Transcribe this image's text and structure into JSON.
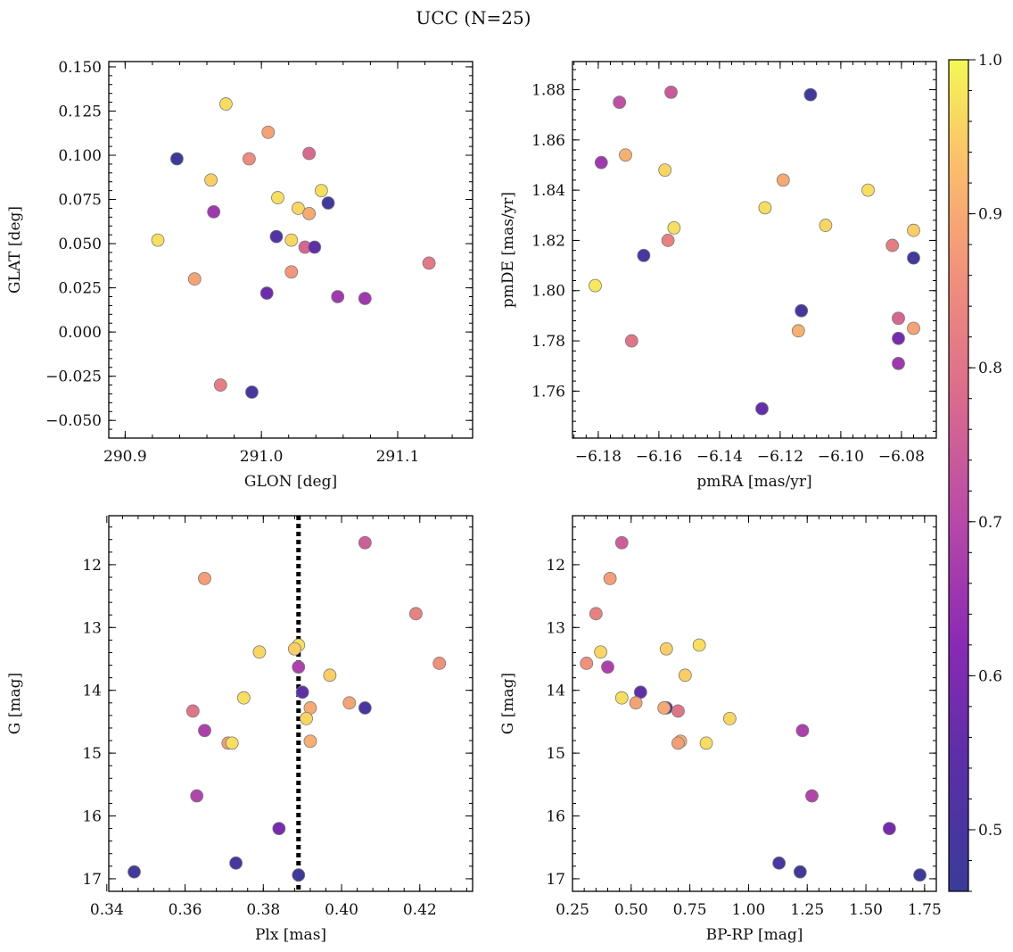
{
  "title": "UCC (N=25)",
  "colorbar": {
    "range": [
      0.46,
      1.0
    ],
    "ticks": [
      0.5,
      0.6,
      0.7,
      0.8,
      0.9,
      1.0
    ],
    "tick_labels": [
      "0.5",
      "0.6",
      "0.7",
      "0.8",
      "0.9",
      "1.0"
    ],
    "colormap": "plasma"
  },
  "chart_data": [
    {
      "id": "glon-glat",
      "type": "scatter",
      "xlabel": "GLON [deg]",
      "ylabel": "GLAT [deg]",
      "xlim": [
        290.888,
        291.155
      ],
      "ylim": [
        -0.06,
        0.153
      ],
      "x_ticks": [
        290.9,
        291.0,
        291.1
      ],
      "x_tick_labels": [
        "290.9",
        "291.0",
        "291.1"
      ],
      "y_ticks": [
        -0.05,
        -0.025,
        0.0,
        0.025,
        0.05,
        0.075,
        0.1,
        0.125,
        0.15
      ],
      "y_tick_labels": [
        "−0.050",
        "−0.025",
        "0.000",
        "0.025",
        "0.050",
        "0.075",
        "0.100",
        "0.125",
        "0.150"
      ],
      "invert_y": false,
      "points": [
        {
          "x": 290.938,
          "y": 0.098,
          "c": 0.47
        },
        {
          "x": 290.974,
          "y": 0.129,
          "c": 0.97
        },
        {
          "x": 291.005,
          "y": 0.113,
          "c": 0.89
        },
        {
          "x": 290.991,
          "y": 0.098,
          "c": 0.85
        },
        {
          "x": 291.035,
          "y": 0.101,
          "c": 0.78
        },
        {
          "x": 290.963,
          "y": 0.086,
          "c": 0.95
        },
        {
          "x": 291.044,
          "y": 0.08,
          "c": 0.97
        },
        {
          "x": 291.012,
          "y": 0.076,
          "c": 0.97
        },
        {
          "x": 291.049,
          "y": 0.073,
          "c": 0.48
        },
        {
          "x": 291.027,
          "y": 0.07,
          "c": 0.96
        },
        {
          "x": 291.035,
          "y": 0.067,
          "c": 0.9
        },
        {
          "x": 290.965,
          "y": 0.068,
          "c": 0.66
        },
        {
          "x": 291.011,
          "y": 0.054,
          "c": 0.52
        },
        {
          "x": 291.022,
          "y": 0.052,
          "c": 0.96
        },
        {
          "x": 290.924,
          "y": 0.052,
          "c": 0.97
        },
        {
          "x": 291.032,
          "y": 0.048,
          "c": 0.77
        },
        {
          "x": 291.039,
          "y": 0.048,
          "c": 0.55
        },
        {
          "x": 291.123,
          "y": 0.039,
          "c": 0.81
        },
        {
          "x": 291.022,
          "y": 0.034,
          "c": 0.87
        },
        {
          "x": 290.951,
          "y": 0.03,
          "c": 0.89
        },
        {
          "x": 291.004,
          "y": 0.022,
          "c": 0.57
        },
        {
          "x": 291.056,
          "y": 0.02,
          "c": 0.66
        },
        {
          "x": 291.076,
          "y": 0.019,
          "c": 0.66
        },
        {
          "x": 290.97,
          "y": -0.03,
          "c": 0.82
        },
        {
          "x": 290.993,
          "y": -0.034,
          "c": 0.5
        }
      ]
    },
    {
      "id": "pmra-pmde",
      "type": "scatter",
      "xlabel": "pmRA [mas/yr]",
      "ylabel": "pmDE [mas/yr]",
      "xlim": [
        -6.1885,
        -6.0685
      ],
      "ylim": [
        1.7413,
        1.8912
      ],
      "x_ticks": [
        -6.18,
        -6.16,
        -6.14,
        -6.12,
        -6.1,
        -6.08
      ],
      "x_tick_labels": [
        "−6.18",
        "−6.16",
        "−6.14",
        "−6.12",
        "−6.10",
        "−6.08"
      ],
      "y_ticks": [
        1.76,
        1.78,
        1.8,
        1.82,
        1.84,
        1.86,
        1.88
      ],
      "y_tick_labels": [
        "1.76",
        "1.78",
        "1.80",
        "1.82",
        "1.84",
        "1.86",
        "1.88"
      ],
      "invert_y": false,
      "points": [
        {
          "x": -6.156,
          "y": 1.879,
          "c": 0.74
        },
        {
          "x": -6.11,
          "y": 1.878,
          "c": 0.48
        },
        {
          "x": -6.173,
          "y": 1.875,
          "c": 0.72
        },
        {
          "x": -6.171,
          "y": 1.854,
          "c": 0.91
        },
        {
          "x": -6.179,
          "y": 1.851,
          "c": 0.66
        },
        {
          "x": -6.158,
          "y": 1.848,
          "c": 0.96
        },
        {
          "x": -6.119,
          "y": 1.844,
          "c": 0.9
        },
        {
          "x": -6.091,
          "y": 1.84,
          "c": 0.97
        },
        {
          "x": -6.125,
          "y": 1.833,
          "c": 0.97
        },
        {
          "x": -6.105,
          "y": 1.826,
          "c": 0.96
        },
        {
          "x": -6.155,
          "y": 1.825,
          "c": 0.97
        },
        {
          "x": -6.076,
          "y": 1.824,
          "c": 0.95
        },
        {
          "x": -6.157,
          "y": 1.82,
          "c": 0.83
        },
        {
          "x": -6.083,
          "y": 1.818,
          "c": 0.82
        },
        {
          "x": -6.165,
          "y": 1.814,
          "c": 0.5
        },
        {
          "x": -6.076,
          "y": 1.813,
          "c": 0.48
        },
        {
          "x": -6.181,
          "y": 1.802,
          "c": 0.98
        },
        {
          "x": -6.113,
          "y": 1.792,
          "c": 0.49
        },
        {
          "x": -6.081,
          "y": 1.789,
          "c": 0.77
        },
        {
          "x": -6.076,
          "y": 1.785,
          "c": 0.89
        },
        {
          "x": -6.114,
          "y": 1.784,
          "c": 0.91
        },
        {
          "x": -6.081,
          "y": 1.781,
          "c": 0.59
        },
        {
          "x": -6.169,
          "y": 1.78,
          "c": 0.8
        },
        {
          "x": -6.081,
          "y": 1.771,
          "c": 0.66
        },
        {
          "x": -6.126,
          "y": 1.753,
          "c": 0.56
        }
      ]
    },
    {
      "id": "plx-g",
      "type": "scatter",
      "xlabel": "Plx [mas]",
      "ylabel": "G [mag]",
      "xlim": [
        0.3405,
        0.4335
      ],
      "ylim": [
        11.22,
        17.2
      ],
      "x_ticks": [
        0.34,
        0.36,
        0.38,
        0.4,
        0.42
      ],
      "x_tick_labels": [
        "0.34",
        "0.36",
        "0.38",
        "0.40",
        "0.42"
      ],
      "y_ticks": [
        12,
        13,
        14,
        15,
        16,
        17
      ],
      "y_tick_labels": [
        "12",
        "13",
        "14",
        "15",
        "16",
        "17"
      ],
      "invert_y": true,
      "vline": {
        "x": 0.389,
        "style": "dotted"
      },
      "points": [
        {
          "x": 0.406,
          "y": 11.65,
          "c": 0.75
        },
        {
          "x": 0.365,
          "y": 12.22,
          "c": 0.88
        },
        {
          "x": 0.419,
          "y": 12.78,
          "c": 0.83
        },
        {
          "x": 0.389,
          "y": 13.28,
          "c": 0.97
        },
        {
          "x": 0.388,
          "y": 13.34,
          "c": 0.95
        },
        {
          "x": 0.379,
          "y": 13.39,
          "c": 0.96
        },
        {
          "x": 0.425,
          "y": 13.57,
          "c": 0.86
        },
        {
          "x": 0.389,
          "y": 13.63,
          "c": 0.68
        },
        {
          "x": 0.397,
          "y": 13.76,
          "c": 0.95
        },
        {
          "x": 0.39,
          "y": 14.03,
          "c": 0.55
        },
        {
          "x": 0.375,
          "y": 14.12,
          "c": 0.97
        },
        {
          "x": 0.402,
          "y": 14.2,
          "c": 0.89
        },
        {
          "x": 0.392,
          "y": 14.28,
          "c": 0.9
        },
        {
          "x": 0.406,
          "y": 14.28,
          "c": 0.5
        },
        {
          "x": 0.362,
          "y": 14.33,
          "c": 0.8
        },
        {
          "x": 0.391,
          "y": 14.45,
          "c": 0.96
        },
        {
          "x": 0.365,
          "y": 14.64,
          "c": 0.68
        },
        {
          "x": 0.392,
          "y": 14.81,
          "c": 0.91
        },
        {
          "x": 0.371,
          "y": 14.84,
          "c": 0.88
        },
        {
          "x": 0.372,
          "y": 14.84,
          "c": 0.97
        },
        {
          "x": 0.363,
          "y": 15.68,
          "c": 0.69
        },
        {
          "x": 0.384,
          "y": 16.2,
          "c": 0.59
        },
        {
          "x": 0.373,
          "y": 16.75,
          "c": 0.5
        },
        {
          "x": 0.347,
          "y": 16.89,
          "c": 0.48
        },
        {
          "x": 0.389,
          "y": 16.94,
          "c": 0.47
        }
      ]
    },
    {
      "id": "bprp-g",
      "type": "scatter",
      "xlabel": "BP-RP [mag]",
      "ylabel": "G [mag]",
      "xlim": [
        0.25,
        1.8
      ],
      "ylim": [
        11.22,
        17.2
      ],
      "x_ticks": [
        0.25,
        0.5,
        0.75,
        1.0,
        1.25,
        1.5,
        1.75
      ],
      "x_tick_labels": [
        "0.25",
        "0.50",
        "0.75",
        "1.00",
        "1.25",
        "1.50",
        "1.75"
      ],
      "y_ticks": [
        12,
        13,
        14,
        15,
        16,
        17
      ],
      "y_tick_labels": [
        "12",
        "13",
        "14",
        "15",
        "16",
        "17"
      ],
      "invert_y": true,
      "points": [
        {
          "x": 0.46,
          "y": 11.65,
          "c": 0.75
        },
        {
          "x": 0.41,
          "y": 12.22,
          "c": 0.88
        },
        {
          "x": 0.35,
          "y": 12.78,
          "c": 0.83
        },
        {
          "x": 0.79,
          "y": 13.28,
          "c": 0.97
        },
        {
          "x": 0.65,
          "y": 13.34,
          "c": 0.95
        },
        {
          "x": 0.37,
          "y": 13.39,
          "c": 0.96
        },
        {
          "x": 0.31,
          "y": 13.57,
          "c": 0.86
        },
        {
          "x": 0.4,
          "y": 13.63,
          "c": 0.68
        },
        {
          "x": 0.73,
          "y": 13.76,
          "c": 0.95
        },
        {
          "x": 0.54,
          "y": 14.03,
          "c": 0.55
        },
        {
          "x": 0.46,
          "y": 14.12,
          "c": 0.97
        },
        {
          "x": 0.52,
          "y": 14.2,
          "c": 0.89
        },
        {
          "x": 0.65,
          "y": 14.28,
          "c": 0.5
        },
        {
          "x": 0.64,
          "y": 14.28,
          "c": 0.9
        },
        {
          "x": 0.7,
          "y": 14.33,
          "c": 0.8
        },
        {
          "x": 0.92,
          "y": 14.45,
          "c": 0.96
        },
        {
          "x": 1.23,
          "y": 14.64,
          "c": 0.68
        },
        {
          "x": 0.71,
          "y": 14.81,
          "c": 0.91
        },
        {
          "x": 0.7,
          "y": 14.84,
          "c": 0.88
        },
        {
          "x": 0.82,
          "y": 14.84,
          "c": 0.97
        },
        {
          "x": 1.27,
          "y": 15.68,
          "c": 0.69
        },
        {
          "x": 1.6,
          "y": 16.2,
          "c": 0.59
        },
        {
          "x": 1.13,
          "y": 16.75,
          "c": 0.5
        },
        {
          "x": 1.22,
          "y": 16.89,
          "c": 0.48
        },
        {
          "x": 1.73,
          "y": 16.94,
          "c": 0.47
        }
      ]
    }
  ]
}
